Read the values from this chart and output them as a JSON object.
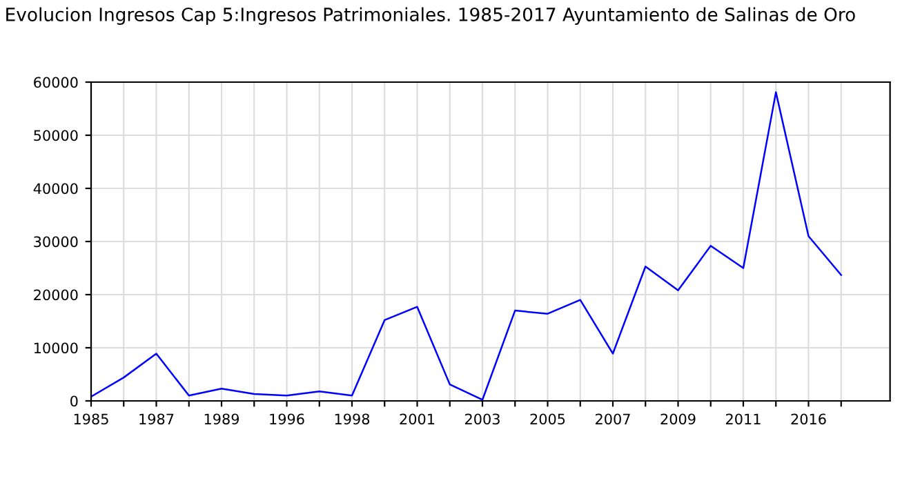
{
  "chart_data": {
    "type": "line",
    "title": "Evolucion Ingresos Cap 5:Ingresos Patrimoniales. 1985-2017 Ayuntamiento de Salinas de Oro",
    "categories": [
      "1985",
      null,
      "1987",
      null,
      "1989",
      null,
      "1996",
      null,
      "1998",
      null,
      "2001",
      null,
      "2003",
      null,
      "2005",
      null,
      "2007",
      null,
      "2009",
      null,
      "2011",
      null,
      "2016",
      null
    ],
    "series": [
      {
        "color": "#0000ff",
        "values": [
          800,
          4400,
          8900,
          1000,
          2300,
          1300,
          1000,
          1800,
          1000,
          15200,
          17700,
          3100,
          200,
          17000,
          16400,
          19000,
          8900,
          25300,
          20800,
          29200,
          25000,
          58100,
          31000,
          23700
        ]
      }
    ],
    "ylim": [
      0,
      60000
    ],
    "yticks": [
      0,
      10000,
      20000,
      30000,
      40000,
      50000,
      60000
    ],
    "grid": true,
    "marker": "none",
    "line_style": "solid"
  }
}
